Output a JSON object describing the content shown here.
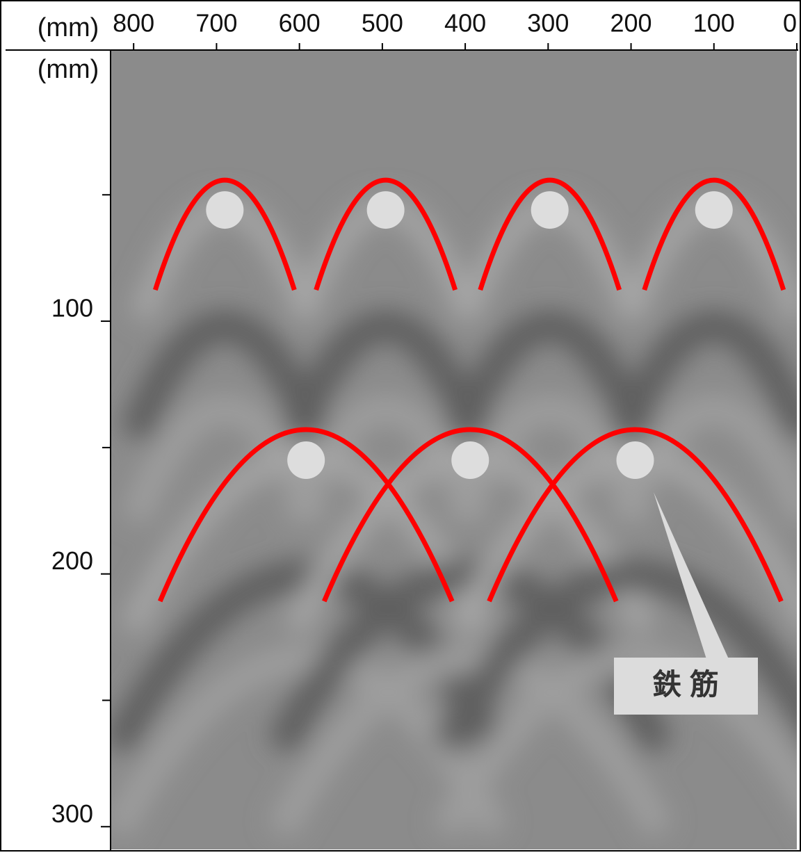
{
  "chart_data": {
    "type": "scatter",
    "xlabel": "(mm)",
    "ylabel": "(mm)",
    "xlim": [
      827,
      0
    ],
    "xticks": [
      800,
      700,
      600,
      500,
      400,
      300,
      200,
      100,
      0
    ],
    "ylim": [
      -7,
      309
    ],
    "yticks": [
      100,
      200,
      300
    ],
    "yminorticks": [
      50,
      150,
      250
    ],
    "series": [
      {
        "name": "鉄 筋",
        "color": "#dddddd",
        "x": [
          690,
          496,
          298,
          100,
          592,
          394,
          195
        ],
        "values": [
          56,
          56,
          56,
          56,
          155,
          155,
          155
        ]
      }
    ],
    "curve_color": "#ff0000"
  }
}
